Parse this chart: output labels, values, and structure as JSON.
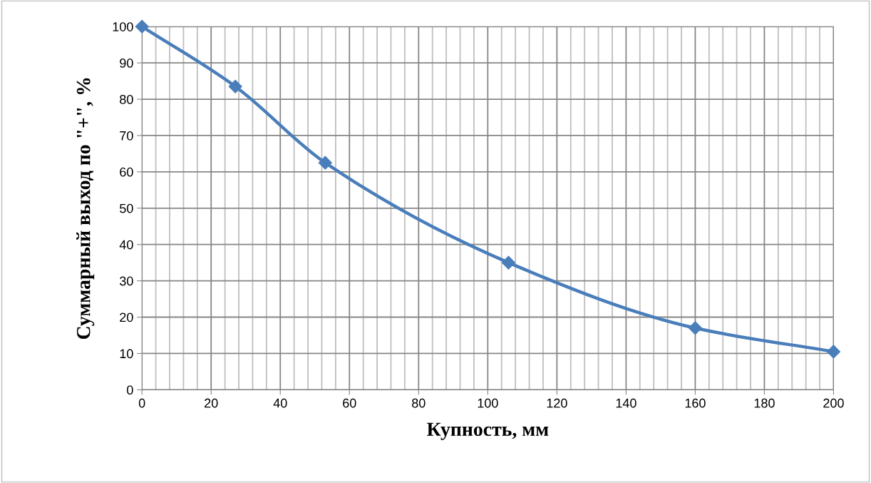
{
  "chart_data": {
    "type": "line",
    "xlabel": "Купность, мм",
    "ylabel": "Суммарный выход по \"+\", %",
    "x": [
      0,
      27,
      53,
      106,
      160,
      200
    ],
    "series": [
      {
        "color": "#4a7ebb",
        "values": [
          100,
          83.5,
          62.5,
          35,
          17,
          10.5
        ]
      }
    ],
    "marker": "diamond",
    "line_style": "solid",
    "grid": true,
    "xlim": [
      0,
      200
    ],
    "ylim": [
      0,
      100
    ],
    "xticks": [
      0,
      {
        "value": 4,
        "label": null
      },
      {
        "value": 8,
        "label": null
      },
      {
        "value": 12,
        "label": null
      },
      {
        "value": 16,
        "label": null
      },
      20,
      {
        "value": 24,
        "label": null
      },
      {
        "value": 28,
        "label": null
      },
      {
        "value": 32,
        "label": null
      },
      {
        "value": 36,
        "label": null
      },
      40,
      {
        "value": 44,
        "label": null
      },
      {
        "value": 48,
        "label": null
      },
      {
        "value": 52,
        "label": null
      },
      {
        "value": 56,
        "label": null
      },
      60,
      {
        "value": 64,
        "label": null
      },
      {
        "value": 68,
        "label": null
      },
      {
        "value": 72,
        "label": null
      },
      {
        "value": 76,
        "label": null
      },
      80,
      {
        "value": 84,
        "label": null
      },
      {
        "value": 88,
        "label": null
      },
      {
        "value": 92,
        "label": null
      },
      {
        "value": 96,
        "label": null
      },
      100,
      {
        "value": 104,
        "label": null
      },
      {
        "value": 108,
        "label": null
      },
      {
        "value": 112,
        "label": null
      },
      {
        "value": 116,
        "label": null
      },
      120,
      {
        "value": 124,
        "label": null
      },
      {
        "value": 128,
        "label": null
      },
      {
        "value": 132,
        "label": null
      },
      {
        "value": 136,
        "label": null
      },
      140,
      {
        "value": 144,
        "label": null
      },
      {
        "value": 148,
        "label": null
      },
      {
        "value": 152,
        "label": null
      },
      {
        "value": 156,
        "label": null
      },
      160,
      {
        "value": 164,
        "label": null
      },
      {
        "value": 168,
        "label": null
      },
      {
        "value": 172,
        "label": null
      },
      {
        "value": 176,
        "label": null
      },
      180,
      {
        "value": 184,
        "label": null
      },
      {
        "value": 188,
        "label": null
      },
      {
        "value": 192,
        "label": null
      },
      {
        "value": 196,
        "label": null
      },
      200
    ],
    "yticks": [
      0,
      10,
      20,
      30,
      40,
      50,
      60,
      70,
      80,
      90,
      100
    ]
  }
}
